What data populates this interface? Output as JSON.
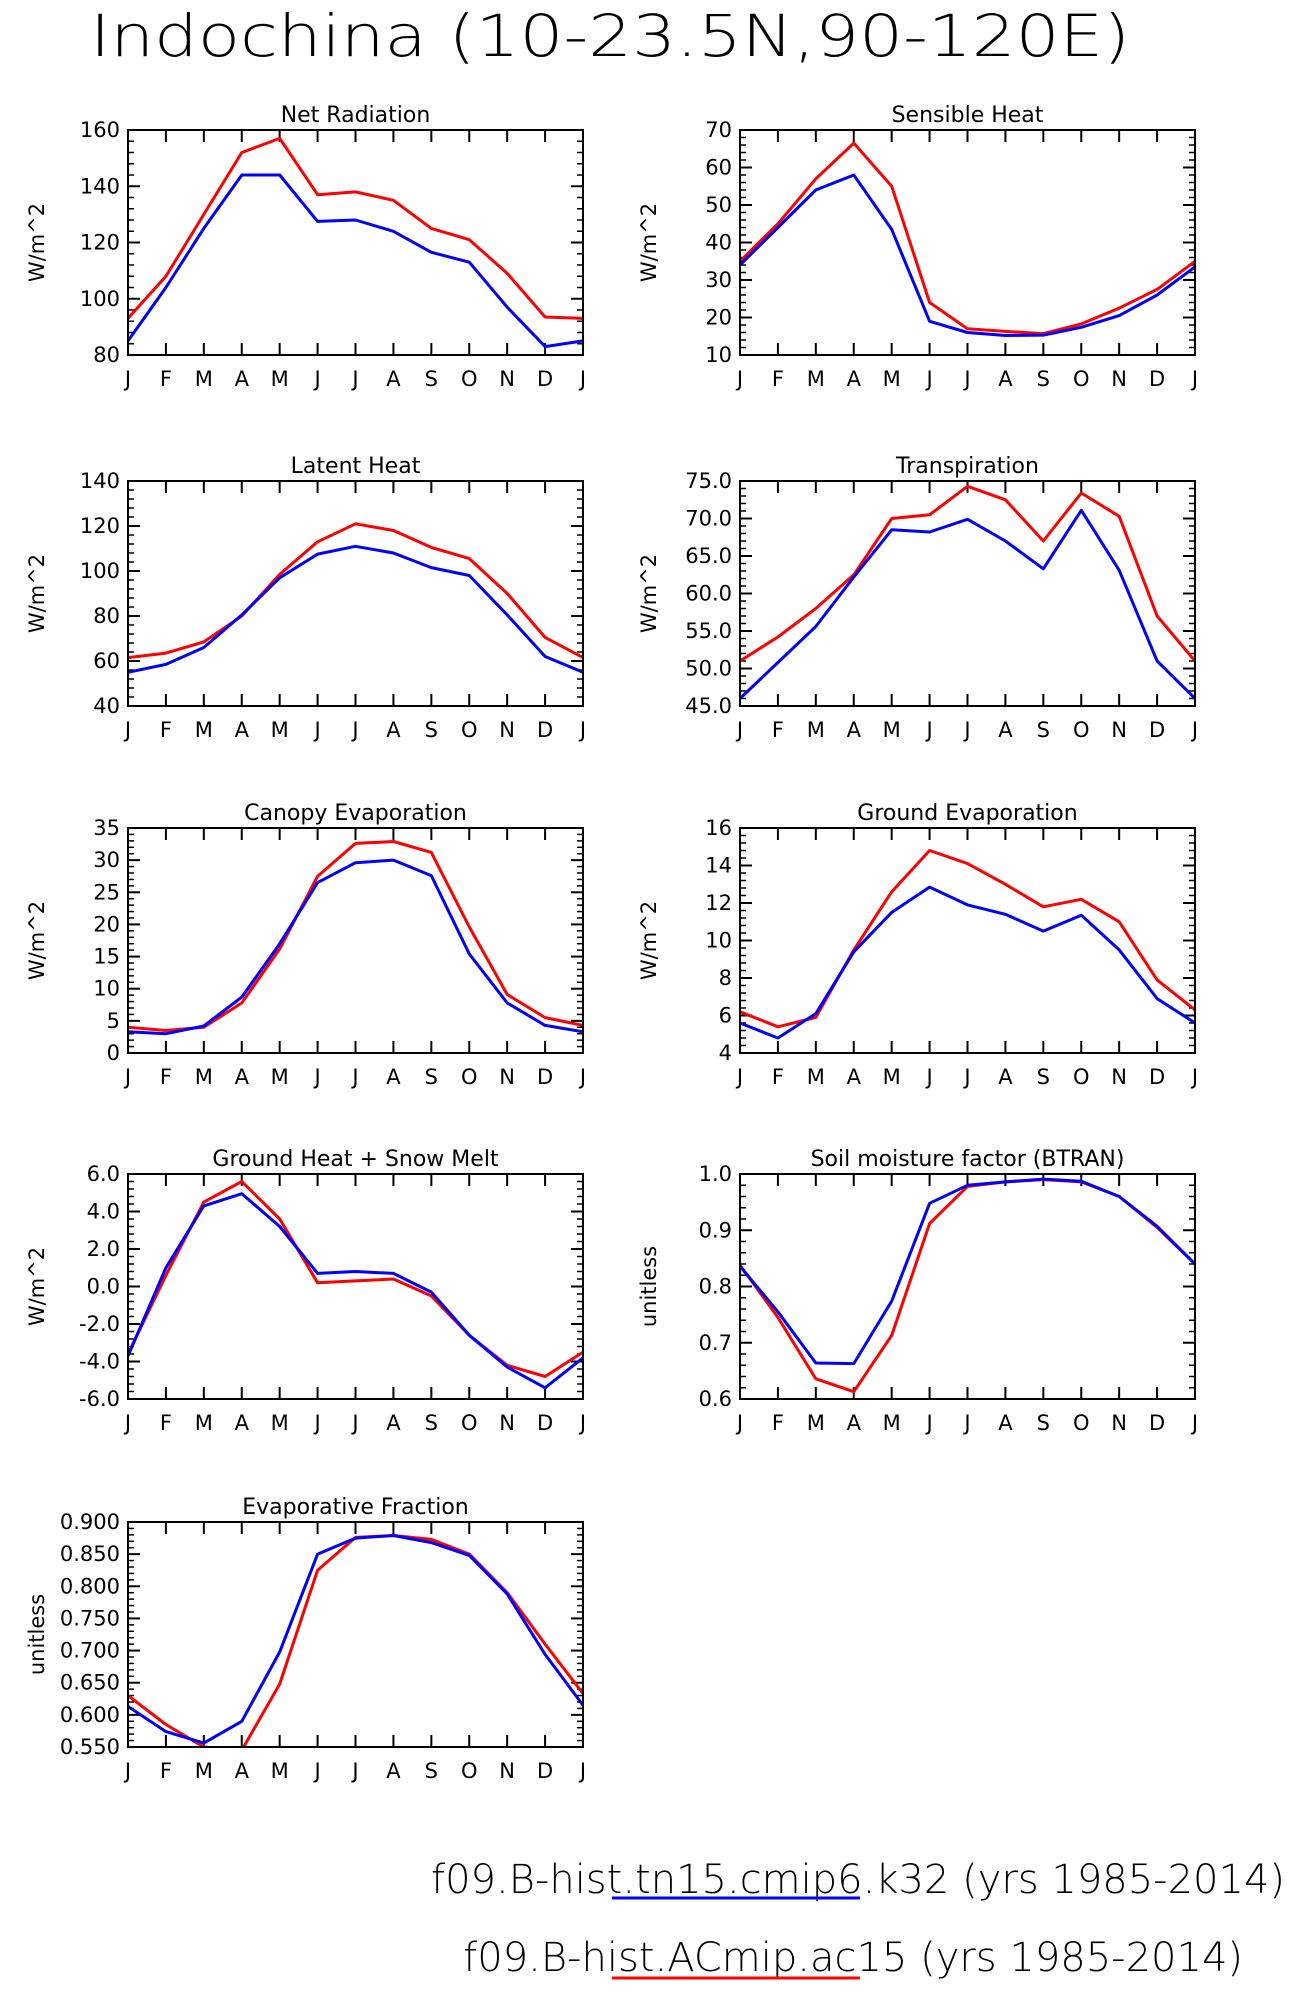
{
  "title": "Indochina (10-23.5N,90-120E)",
  "months": [
    "J",
    "F",
    "M",
    "A",
    "M",
    "J",
    "J",
    "A",
    "S",
    "O",
    "N",
    "D",
    "J"
  ],
  "legend": [
    {
      "label": "f09.B-hist.tn15.cmip6.k32 (yrs 1985-2014)",
      "underline_text": "f09.B-hist.tn15.cmip6.k32",
      "color": "#0000ff"
    },
    {
      "label": "f09.B-hist.ACmip.ac15 (yrs 1985-2014)",
      "underline_text": "f09.B-hist.ACmip.ac15",
      "color": "#ff0000"
    }
  ],
  "chart_data": [
    {
      "type": "line",
      "title": "Net Radiation",
      "ylabel": "W/m^2",
      "ylim": [
        80,
        160
      ],
      "yticks": [
        "80",
        "100",
        "120",
        "140",
        "160"
      ],
      "ytick_values": [
        80,
        100,
        120,
        140,
        160
      ],
      "categories": [
        "J",
        "F",
        "M",
        "A",
        "M",
        "J",
        "J",
        "A",
        "S",
        "O",
        "N",
        "D",
        "J"
      ],
      "series": [
        {
          "color": "#ff0000",
          "values": [
            93,
            108,
            130,
            152,
            157,
            137,
            138,
            135,
            125,
            121,
            109,
            93.5,
            93
          ]
        },
        {
          "color": "#0000ff",
          "values": [
            85,
            104,
            125,
            144,
            144,
            127.5,
            128,
            124,
            116.5,
            113,
            97,
            83,
            85
          ]
        }
      ]
    },
    {
      "type": "line",
      "title": "Sensible Heat",
      "ylabel": "W/m^2",
      "ylim": [
        10,
        70
      ],
      "yticks": [
        "10",
        "20",
        "30",
        "40",
        "50",
        "60",
        "70"
      ],
      "ytick_values": [
        10,
        20,
        30,
        40,
        50,
        60,
        70
      ],
      "categories": [
        "J",
        "F",
        "M",
        "A",
        "M",
        "J",
        "J",
        "A",
        "S",
        "O",
        "N",
        "D",
        "J"
      ],
      "series": [
        {
          "color": "#ff0000",
          "values": [
            35,
            45,
            57,
            66.5,
            55,
            24,
            17,
            16.3,
            15.7,
            18.3,
            22.5,
            27.5,
            35
          ]
        },
        {
          "color": "#0000ff",
          "values": [
            34,
            44,
            54,
            58,
            43.5,
            19,
            16,
            15.2,
            15.3,
            17.4,
            20.5,
            26,
            33.5
          ]
        }
      ]
    },
    {
      "type": "line",
      "title": "Latent Heat",
      "ylabel": "W/m^2",
      "ylim": [
        40,
        140
      ],
      "yticks": [
        "40",
        "60",
        "80",
        "100",
        "120",
        "140"
      ],
      "ytick_values": [
        40,
        60,
        80,
        100,
        120,
        140
      ],
      "categories": [
        "J",
        "F",
        "M",
        "A",
        "M",
        "J",
        "J",
        "A",
        "S",
        "O",
        "N",
        "D",
        "J"
      ],
      "series": [
        {
          "color": "#ff0000",
          "values": [
            61.5,
            63.5,
            68.5,
            80,
            98.5,
            113,
            121,
            118,
            110.5,
            105.5,
            90,
            70.5,
            61.5
          ]
        },
        {
          "color": "#0000ff",
          "values": [
            55,
            58.5,
            66,
            80.5,
            97,
            107.5,
            111,
            108,
            101.5,
            98,
            80.5,
            62,
            55
          ]
        }
      ]
    },
    {
      "type": "line",
      "title": "Transpiration",
      "ylabel": "W/m^2",
      "ylim": [
        45,
        75
      ],
      "yticks": [
        "45.0",
        "50.0",
        "55.0",
        "60.0",
        "65.0",
        "70.0",
        "75.0"
      ],
      "ytick_values": [
        45,
        50,
        55,
        60,
        65,
        70,
        75
      ],
      "categories": [
        "J",
        "F",
        "M",
        "A",
        "M",
        "J",
        "J",
        "A",
        "S",
        "O",
        "N",
        "D",
        "J"
      ],
      "series": [
        {
          "color": "#ff0000",
          "values": [
            51,
            54.2,
            58,
            62.5,
            70,
            70.5,
            74.3,
            72.5,
            67,
            73.4,
            70.3,
            57,
            51
          ]
        },
        {
          "color": "#0000ff",
          "values": [
            46,
            50.8,
            55.6,
            62.2,
            68.5,
            68.2,
            69.9,
            67,
            63.3,
            71.1,
            63.1,
            51,
            46
          ]
        }
      ]
    },
    {
      "type": "line",
      "title": "Canopy Evaporation",
      "ylabel": "W/m^2",
      "ylim": [
        0,
        35
      ],
      "yticks": [
        "0",
        "5",
        "10",
        "15",
        "20",
        "25",
        "30",
        "35"
      ],
      "ytick_values": [
        0,
        5,
        10,
        15,
        20,
        25,
        30,
        35
      ],
      "categories": [
        "J",
        "F",
        "M",
        "A",
        "M",
        "J",
        "J",
        "A",
        "S",
        "O",
        "N",
        "D",
        "J"
      ],
      "series": [
        {
          "color": "#ff0000",
          "values": [
            4,
            3.5,
            4,
            7.8,
            16.2,
            27.5,
            32.6,
            32.9,
            31.2,
            19.6,
            9.1,
            5.5,
            4.3
          ]
        },
        {
          "color": "#0000ff",
          "values": [
            3.3,
            3,
            4.2,
            8.7,
            17,
            26.5,
            29.6,
            30,
            27.6,
            15.4,
            7.8,
            4.3,
            3.3
          ]
        }
      ]
    },
    {
      "type": "line",
      "title": "Ground Evaporation",
      "ylabel": "W/m^2",
      "ylim": [
        4,
        16
      ],
      "yticks": [
        "4",
        "6",
        "8",
        "10",
        "12",
        "14",
        "16"
      ],
      "ytick_values": [
        4,
        6,
        8,
        10,
        12,
        14,
        16
      ],
      "categories": [
        "J",
        "F",
        "M",
        "A",
        "M",
        "J",
        "J",
        "A",
        "S",
        "O",
        "N",
        "D",
        "J"
      ],
      "series": [
        {
          "color": "#ff0000",
          "values": [
            6.2,
            5.4,
            5.9,
            9.5,
            12.6,
            14.8,
            14.1,
            13,
            11.8,
            12.2,
            11,
            7.9,
            6.3
          ]
        },
        {
          "color": "#0000ff",
          "values": [
            5.6,
            4.8,
            6.1,
            9.4,
            11.5,
            12.85,
            11.9,
            11.4,
            10.5,
            11.35,
            9.5,
            6.9,
            5.6
          ]
        }
      ]
    },
    {
      "type": "line",
      "title": "Ground Heat + Snow Melt",
      "ylabel": "W/m^2",
      "ylim": [
        -6,
        6
      ],
      "yticks": [
        "-6.0",
        "-4.0",
        "-2.0",
        "0.0",
        "2.0",
        "4.0",
        "6.0"
      ],
      "ytick_values": [
        -6,
        -4,
        -2,
        0,
        2,
        4,
        6
      ],
      "categories": [
        "J",
        "F",
        "M",
        "A",
        "M",
        "J",
        "J",
        "A",
        "S",
        "O",
        "N",
        "D",
        "J"
      ],
      "series": [
        {
          "color": "#ff0000",
          "values": [
            -3.6,
            0.6,
            4.5,
            5.6,
            3.6,
            0.2,
            0.3,
            0.4,
            -0.5,
            -2.6,
            -4.2,
            -4.8,
            -3.5
          ]
        },
        {
          "color": "#0000ff",
          "values": [
            -3.7,
            1,
            4.3,
            4.95,
            3.2,
            0.7,
            0.8,
            0.7,
            -0.3,
            -2.6,
            -4.3,
            -5.4,
            -3.8
          ]
        }
      ]
    },
    {
      "type": "line",
      "title": "Soil moisture factor (BTRAN)",
      "ylabel": "unitless",
      "ylim": [
        0.6,
        1.0
      ],
      "yticks": [
        "0.6",
        "0.7",
        "0.8",
        "0.9",
        "1.0"
      ],
      "ytick_values": [
        0.6,
        0.7,
        0.8,
        0.9,
        1.0
      ],
      "categories": [
        "J",
        "F",
        "M",
        "A",
        "M",
        "J",
        "J",
        "A",
        "S",
        "O",
        "N",
        "D",
        "J"
      ],
      "series": [
        {
          "color": "#ff0000",
          "values": [
            0.838,
            0.745,
            0.636,
            0.613,
            0.713,
            0.912,
            0.978,
            0.986,
            0.99,
            0.986,
            0.96,
            0.905,
            0.84
          ]
        },
        {
          "color": "#0000ff",
          "values": [
            0.836,
            0.755,
            0.664,
            0.663,
            0.774,
            0.948,
            0.98,
            0.986,
            0.991,
            0.987,
            0.96,
            0.907,
            0.84
          ]
        }
      ]
    },
    {
      "type": "line",
      "title": "Evaporative Fraction",
      "ylabel": "unitless",
      "ylim": [
        0.55,
        0.9
      ],
      "yticks": [
        "0.550",
        "0.600",
        "0.650",
        "0.700",
        "0.750",
        "0.800",
        "0.850",
        "0.900"
      ],
      "ytick_values": [
        0.55,
        0.6,
        0.65,
        0.7,
        0.75,
        0.8,
        0.85,
        0.9
      ],
      "categories": [
        "J",
        "F",
        "M",
        "A",
        "M",
        "J",
        "J",
        "A",
        "S",
        "O",
        "N",
        "D",
        "J"
      ],
      "series": [
        {
          "color": "#ff0000",
          "values": [
            0.63,
            0.585,
            0.55,
            0.545,
            0.648,
            0.825,
            0.876,
            0.879,
            0.873,
            0.85,
            0.79,
            0.71,
            0.633
          ]
        },
        {
          "color": "#0000ff",
          "values": [
            0.613,
            0.574,
            0.556,
            0.59,
            0.698,
            0.85,
            0.875,
            0.879,
            0.868,
            0.848,
            0.788,
            0.694,
            0.615
          ]
        }
      ]
    }
  ]
}
